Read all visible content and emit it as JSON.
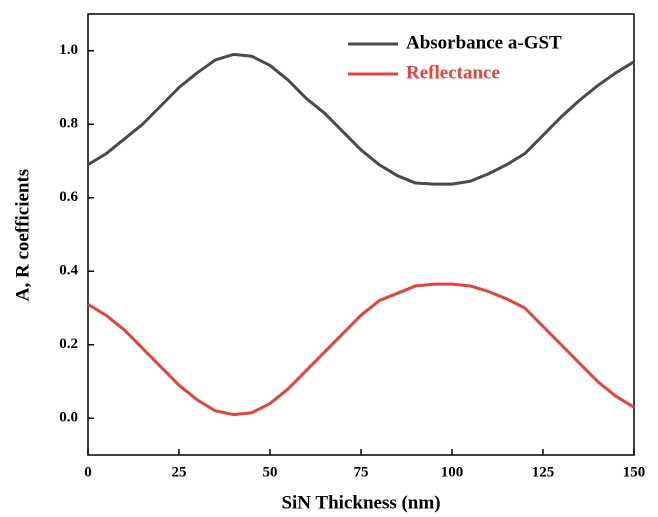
{
  "chart_data": {
    "type": "line",
    "x_label": "SiN Thickness (nm)",
    "y_label": "A, R coefficients",
    "x": [
      0,
      5,
      10,
      15,
      20,
      25,
      30,
      35,
      40,
      45,
      50,
      55,
      60,
      65,
      70,
      75,
      80,
      85,
      90,
      95,
      100,
      105,
      110,
      115,
      120,
      125,
      130,
      135,
      140,
      145,
      150
    ],
    "series": [
      {
        "name": "Absorbance a-GST",
        "color": "#4a4a4a",
        "values": [
          0.69,
          0.72,
          0.76,
          0.8,
          0.85,
          0.9,
          0.94,
          0.975,
          0.99,
          0.985,
          0.96,
          0.92,
          0.87,
          0.83,
          0.78,
          0.73,
          0.69,
          0.66,
          0.64,
          0.637,
          0.637,
          0.645,
          0.665,
          0.69,
          0.72,
          0.77,
          0.82,
          0.865,
          0.905,
          0.94,
          0.97
        ]
      },
      {
        "name": "Reflectance",
        "color": "#e8403a",
        "values": [
          0.31,
          0.28,
          0.24,
          0.19,
          0.14,
          0.09,
          0.05,
          0.02,
          0.01,
          0.015,
          0.04,
          0.08,
          0.13,
          0.18,
          0.23,
          0.28,
          0.32,
          0.34,
          0.36,
          0.365,
          0.365,
          0.36,
          0.345,
          0.325,
          0.3,
          0.25,
          0.2,
          0.15,
          0.1,
          0.06,
          0.03
        ]
      }
    ],
    "xlim": [
      0,
      150
    ],
    "xticks": [
      0,
      25,
      50,
      75,
      100,
      125,
      150
    ],
    "ylim": [
      -0.1,
      1.1
    ],
    "yticks": [
      {
        "value": 0,
        "label": "0.0"
      },
      0.2,
      0.4,
      0.6,
      0.8,
      {
        "value": 1,
        "label": "1.0"
      }
    ],
    "legend": "upper right"
  }
}
